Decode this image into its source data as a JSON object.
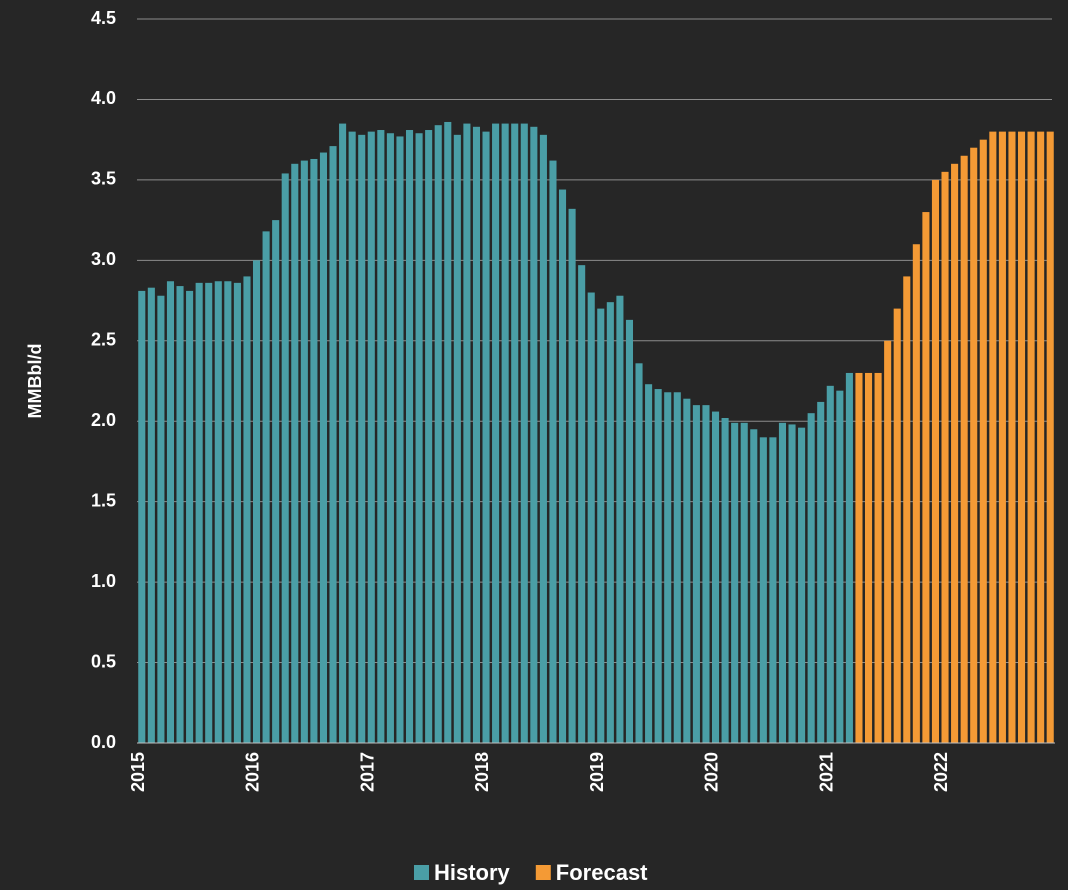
{
  "chart_data": {
    "type": "bar",
    "ylabel": "MMBbl/d",
    "categories": [
      "2015",
      null,
      null,
      null,
      null,
      null,
      null,
      null,
      null,
      null,
      null,
      null,
      "2016",
      null,
      null,
      null,
      null,
      null,
      null,
      null,
      null,
      null,
      null,
      null,
      "2017",
      null,
      null,
      null,
      null,
      null,
      null,
      null,
      null,
      null,
      null,
      null,
      "2018",
      null,
      null,
      null,
      null,
      null,
      null,
      null,
      null,
      null,
      null,
      null,
      "2019",
      null,
      null,
      null,
      null,
      null,
      null,
      null,
      null,
      null,
      null,
      null,
      "2020",
      null,
      null,
      null,
      null,
      null,
      null,
      null,
      null,
      null,
      null,
      null,
      "2021",
      null,
      null,
      null,
      null,
      null,
      null,
      null,
      null,
      null,
      null,
      null,
      "2022",
      null,
      null,
      null,
      null,
      null,
      null,
      null,
      null,
      null,
      null,
      null
    ],
    "series": [
      {
        "name": "History",
        "color": "#4a9ea6",
        "values": [
          2.81,
          2.83,
          2.78,
          2.87,
          2.84,
          2.81,
          2.86,
          2.86,
          2.87,
          2.87,
          2.86,
          2.9,
          3.0,
          3.18,
          3.25,
          3.54,
          3.6,
          3.62,
          3.63,
          3.67,
          3.71,
          3.85,
          3.8,
          3.78,
          3.8,
          3.81,
          3.79,
          3.77,
          3.81,
          3.79,
          3.81,
          3.84,
          3.86,
          3.78,
          3.85,
          3.83,
          3.8,
          3.85,
          3.85,
          3.85,
          3.85,
          3.83,
          3.78,
          3.62,
          3.44,
          3.32,
          2.97,
          2.8,
          2.7,
          2.74,
          2.78,
          2.63,
          2.36,
          2.23,
          2.2,
          2.18,
          2.18,
          2.14,
          2.1,
          2.1,
          2.06,
          2.02,
          1.99,
          1.99,
          1.95,
          1.9,
          1.9,
          1.99,
          1.98,
          1.96,
          2.05,
          2.12,
          2.22,
          2.19,
          2.3,
          null,
          null,
          null,
          null,
          null,
          null,
          null,
          null,
          null,
          null,
          null,
          null,
          null,
          null,
          null,
          null,
          null,
          null,
          null,
          null,
          null
        ]
      },
      {
        "name": "Forecast",
        "color": "#f49a35",
        "values": [
          null,
          null,
          null,
          null,
          null,
          null,
          null,
          null,
          null,
          null,
          null,
          null,
          null,
          null,
          null,
          null,
          null,
          null,
          null,
          null,
          null,
          null,
          null,
          null,
          null,
          null,
          null,
          null,
          null,
          null,
          null,
          null,
          null,
          null,
          null,
          null,
          null,
          null,
          null,
          null,
          null,
          null,
          null,
          null,
          null,
          null,
          null,
          null,
          null,
          null,
          null,
          null,
          null,
          null,
          null,
          null,
          null,
          null,
          null,
          null,
          null,
          null,
          null,
          null,
          null,
          null,
          null,
          null,
          null,
          null,
          null,
          null,
          null,
          null,
          null,
          2.3,
          2.3,
          2.3,
          2.5,
          2.7,
          2.9,
          3.1,
          3.3,
          3.5,
          3.55,
          3.6,
          3.65,
          3.7,
          3.75,
          3.8,
          3.8,
          3.8,
          3.8,
          3.8,
          3.8,
          3.8
        ]
      }
    ],
    "ylim": [
      0,
      4.5
    ],
    "yticks": [
      {
        "value": 0,
        "label": "0.0"
      },
      0.5,
      {
        "value": 1,
        "label": "1.0"
      },
      1.5,
      {
        "value": 2,
        "label": "2.0"
      },
      2.5,
      {
        "value": 3,
        "label": "3.0"
      },
      3.5,
      {
        "value": 4,
        "label": "4.0"
      },
      4.5
    ],
    "grid": true,
    "legend": "bottom"
  }
}
